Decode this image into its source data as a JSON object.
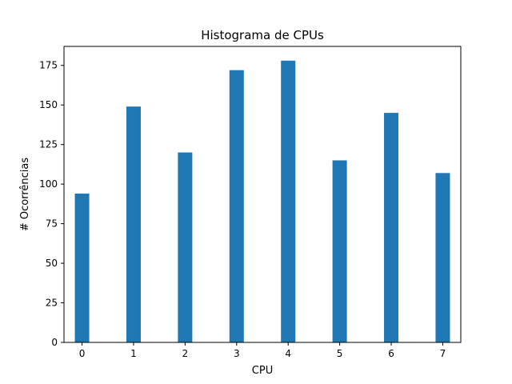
{
  "chart_data": {
    "type": "bar",
    "title": "Histograma de CPUs",
    "xlabel": "CPU",
    "ylabel": "# Ocorrências",
    "x": [
      0,
      1,
      2,
      3,
      4,
      5,
      6,
      7
    ],
    "values": [
      94,
      149,
      120,
      172,
      178,
      115,
      145,
      107
    ],
    "bar_color": "#1f77b4",
    "xlim": [
      -0.35,
      7.35
    ],
    "ylim": [
      0,
      187
    ],
    "xticks": [
      "0",
      "1",
      "2",
      "3",
      "4",
      "5",
      "6",
      "7"
    ],
    "yticks": [
      "0",
      "25",
      "50",
      "75",
      "100",
      "125",
      "150",
      "175"
    ],
    "grid": false
  }
}
